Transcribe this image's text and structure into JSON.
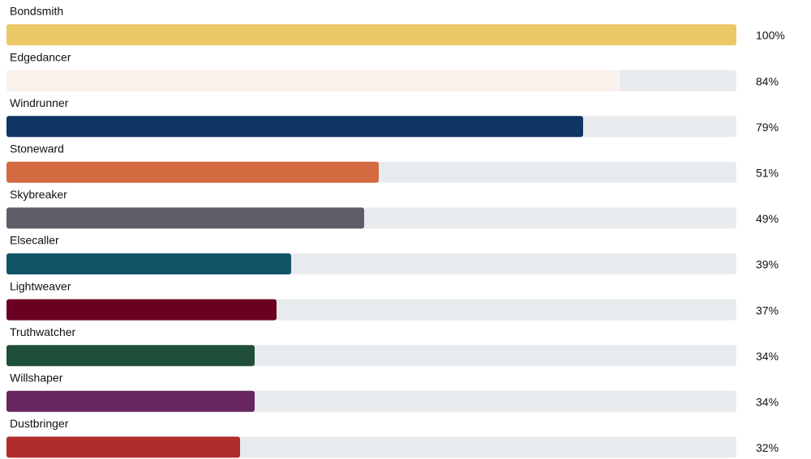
{
  "chart_data": {
    "type": "bar",
    "orientation": "horizontal",
    "categories": [
      "Bondsmith",
      "Edgedancer",
      "Windrunner",
      "Stoneward",
      "Skybreaker",
      "Elsecaller",
      "Lightweaver",
      "Truthwatcher",
      "Willshaper",
      "Dustbringer"
    ],
    "values": [
      100,
      84,
      79,
      51,
      49,
      39,
      37,
      34,
      34,
      32
    ],
    "value_labels": [
      "100%",
      "84%",
      "79%",
      "51%",
      "49%",
      "39%",
      "37%",
      "34%",
      "34%",
      "32%"
    ],
    "colors": [
      "#ebc866",
      "#fbf1ec",
      "#0f3562",
      "#d46a40",
      "#5f5c68",
      "#125366",
      "#6b0020",
      "#1f4f38",
      "#66255f",
      "#b12c2c"
    ],
    "xlim": [
      0,
      100
    ]
  }
}
